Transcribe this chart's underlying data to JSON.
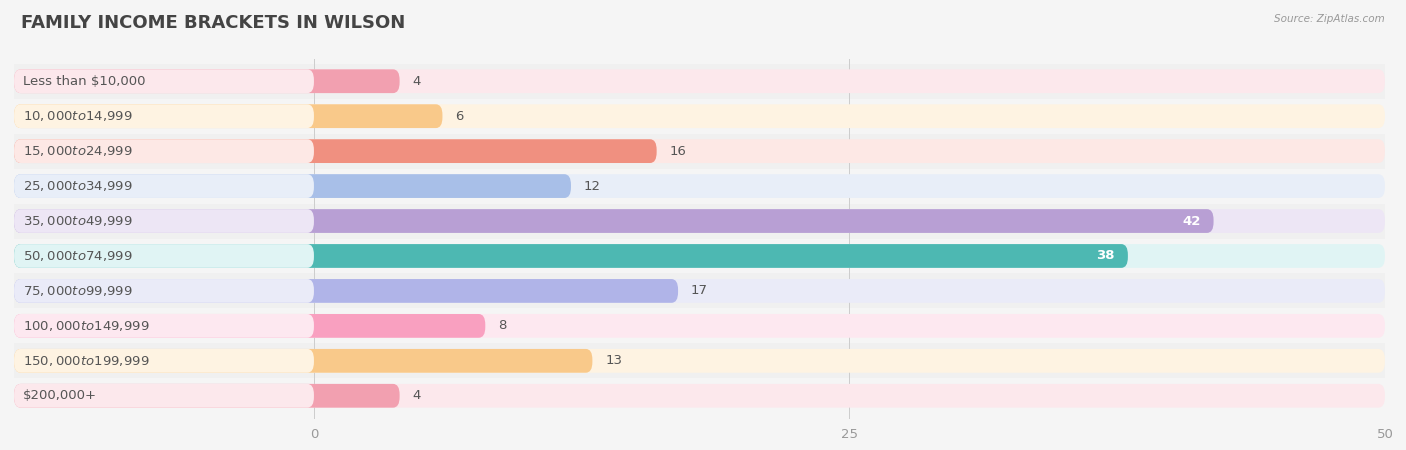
{
  "title": "FAMILY INCOME BRACKETS IN WILSON",
  "source": "Source: ZipAtlas.com",
  "categories": [
    "Less than $10,000",
    "$10,000 to $14,999",
    "$15,000 to $24,999",
    "$25,000 to $34,999",
    "$35,000 to $49,999",
    "$50,000 to $74,999",
    "$75,000 to $99,999",
    "$100,000 to $149,999",
    "$150,000 to $199,999",
    "$200,000+"
  ],
  "values": [
    4,
    6,
    16,
    12,
    42,
    38,
    17,
    8,
    13,
    4
  ],
  "bar_colors": [
    "#f2a0b0",
    "#f9c98a",
    "#f09080",
    "#a8bfe8",
    "#b89fd4",
    "#4db8b2",
    "#b0b4e8",
    "#f9a0c0",
    "#f9c98a",
    "#f2a0b0"
  ],
  "bar_bg_colors": [
    "#fce8ec",
    "#fef3e2",
    "#fde8e5",
    "#e8eef8",
    "#ede6f5",
    "#e0f4f4",
    "#eaebf8",
    "#fde8f0",
    "#fef3e2",
    "#fce8ec"
  ],
  "xlim_data": [
    0,
    50
  ],
  "xticks": [
    0,
    25,
    50
  ],
  "background_color": "#f5f5f5",
  "row_bg_color": "#efefef",
  "title_fontsize": 13,
  "label_fontsize": 9.5,
  "value_fontsize": 9.5,
  "bar_height": 0.68,
  "label_text_color": "#555555",
  "value_threshold_inside": 30
}
